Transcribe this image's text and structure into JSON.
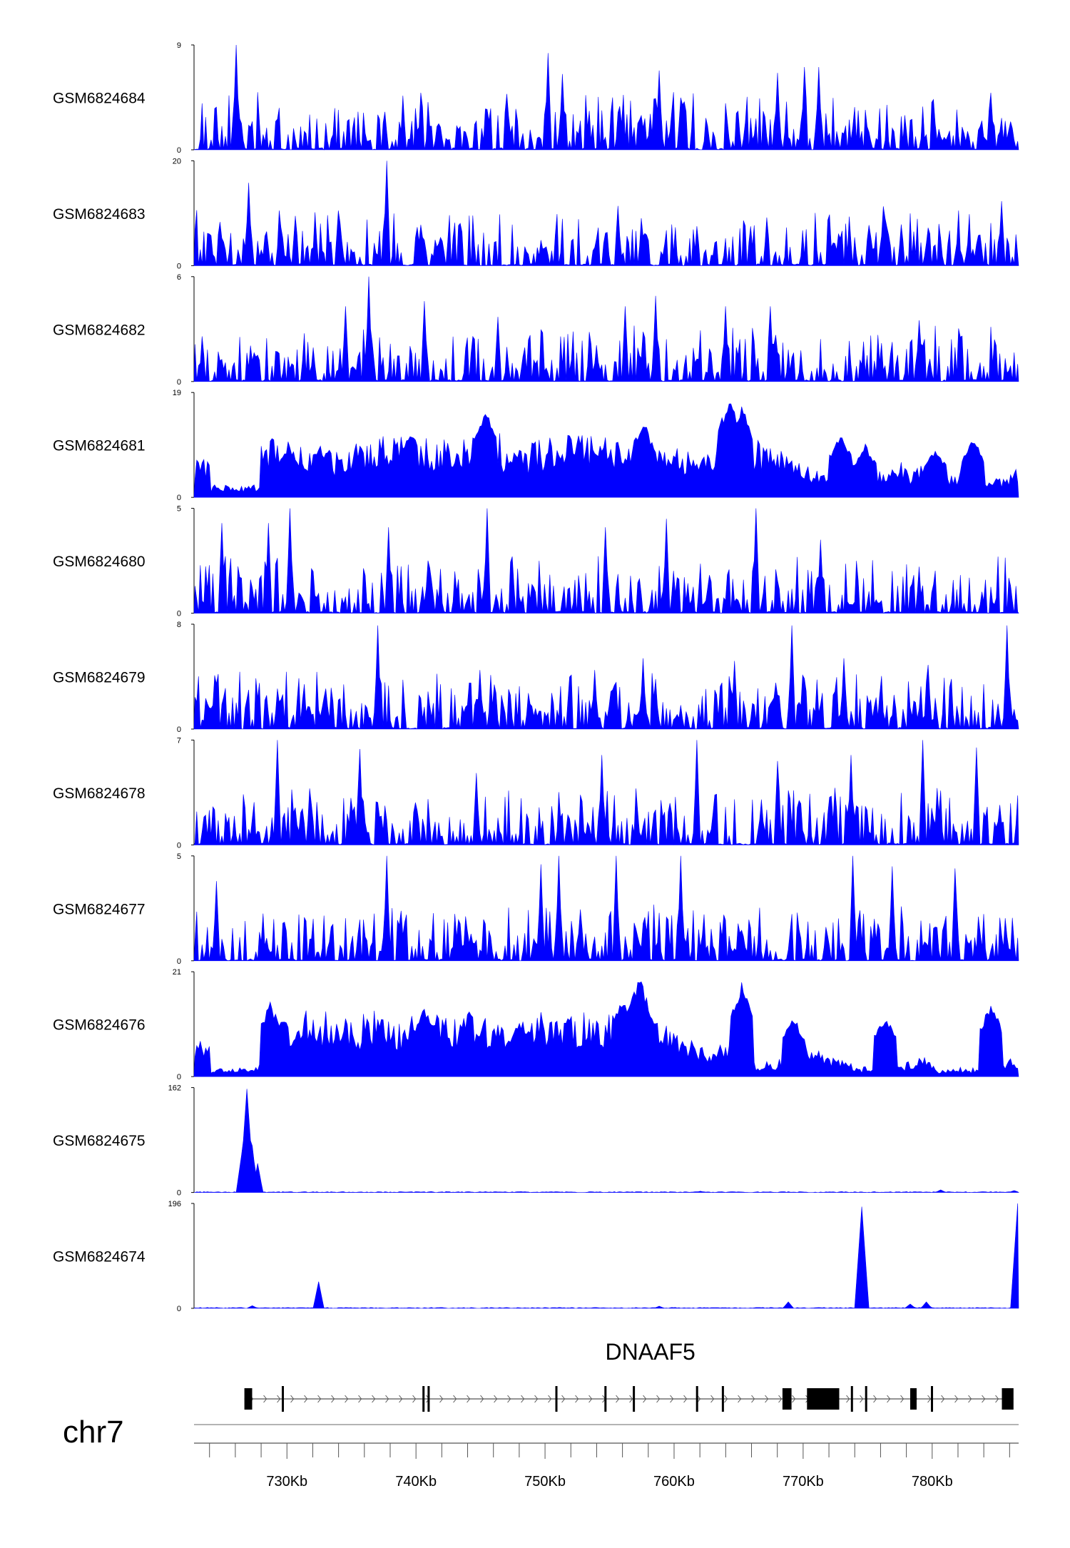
{
  "chart_data": {
    "type": "area",
    "chromosome": "chr7",
    "x_unit": "bp",
    "xlim": [
      722800,
      786700
    ],
    "x_ticks": [
      {
        "value": 730000,
        "label": "730Kb"
      },
      {
        "value": 740000,
        "label": "740Kb"
      },
      {
        "value": 750000,
        "label": "750Kb"
      },
      {
        "value": 760000,
        "label": "760Kb"
      },
      {
        "value": 770000,
        "label": "770Kb"
      },
      {
        "value": 780000,
        "label": "780Kb"
      }
    ],
    "minor_tick_step": 2000,
    "fill_color": "#0000ff",
    "tracks": [
      {
        "name": "GSM6824684",
        "ymax": 9,
        "ymax_label": "9",
        "ymin_label": "0",
        "peaks": [
          [
            726000,
            9
          ],
          [
            750300,
            8.3
          ],
          [
            758900,
            6.8
          ],
          [
            768000,
            6.6
          ],
          [
            770100,
            7.1
          ],
          [
            771200,
            7.1
          ],
          [
            751400,
            6.5
          ],
          [
            747000,
            4.8
          ],
          [
            784500,
            4.9
          ]
        ]
      },
      {
        "name": "GSM6824683",
        "ymax": 20,
        "ymax_label": "20",
        "ymin_label": "0",
        "peaks": [
          [
            727000,
            15.8
          ],
          [
            737800,
            20
          ],
          [
            734000,
            10.5
          ],
          [
            755600,
            11.4
          ],
          [
            776200,
            11.3
          ],
          [
            785400,
            12.3
          ],
          [
            766000,
            7.5
          ],
          [
            730600,
            9.5
          ]
        ]
      },
      {
        "name": "GSM6824682",
        "ymax": 6,
        "ymax_label": "6",
        "ymin_label": "0",
        "peaks": [
          [
            736300,
            6
          ],
          [
            734500,
            4.3
          ],
          [
            740600,
            4.6
          ],
          [
            758600,
            4.9
          ],
          [
            756200,
            4.3
          ],
          [
            767500,
            4.3
          ],
          [
            764000,
            4.3
          ],
          [
            746400,
            3.7
          ],
          [
            779000,
            3.5
          ]
        ]
      },
      {
        "name": "GSM6824681",
        "ymax": 19,
        "ymax_label": "19",
        "ymin_label": "0",
        "peaks": [
          [
            745400,
            17.2
          ],
          [
            764300,
            18.9
          ],
          [
            765300,
            17.4
          ],
          [
            757600,
            14.5
          ],
          [
            772900,
            12.1
          ],
          [
            783200,
            11.1
          ],
          [
            730100,
            9.1
          ],
          [
            774800,
            9.8
          ],
          [
            780300,
            9.2
          ]
        ]
      },
      {
        "name": "GSM6824680",
        "ymax": 5,
        "ymax_label": "5",
        "ymin_label": "0",
        "peaks": [
          [
            730200,
            5
          ],
          [
            745500,
            5
          ],
          [
            766400,
            5
          ],
          [
            737900,
            4.1
          ],
          [
            728500,
            4.3
          ],
          [
            759400,
            4.5
          ],
          [
            724900,
            4.3
          ],
          [
            754700,
            4.1
          ],
          [
            771400,
            3.5
          ]
        ]
      },
      {
        "name": "GSM6824679",
        "ymax": 8,
        "ymax_label": "8",
        "ymin_label": "0",
        "peaks": [
          [
            737000,
            7.9
          ],
          [
            769100,
            7.9
          ],
          [
            785800,
            7.9
          ],
          [
            773200,
            5.4
          ],
          [
            757600,
            5.4
          ],
          [
            764700,
            5.2
          ],
          [
            753800,
            4.5
          ],
          [
            779700,
            4.9
          ],
          [
            745000,
            4.5
          ]
        ]
      },
      {
        "name": "GSM6824678",
        "ymax": 7,
        "ymax_label": "7",
        "ymin_label": "0",
        "peaks": [
          [
            729300,
            7
          ],
          [
            735600,
            6.4
          ],
          [
            779200,
            7
          ],
          [
            761700,
            7
          ],
          [
            754400,
            6
          ],
          [
            768000,
            5.6
          ],
          [
            773700,
            6
          ],
          [
            783400,
            6.5
          ],
          [
            744700,
            4.8
          ]
        ]
      },
      {
        "name": "GSM6824677",
        "ymax": 5,
        "ymax_label": "5",
        "ymin_label": "0",
        "peaks": [
          [
            737700,
            5
          ],
          [
            773800,
            5
          ],
          [
            749700,
            4.6
          ],
          [
            751000,
            5
          ],
          [
            755500,
            5
          ],
          [
            760500,
            5
          ],
          [
            776900,
            4.5
          ],
          [
            781800,
            4.4
          ],
          [
            724500,
            3.8
          ]
        ]
      },
      {
        "name": "GSM6824676",
        "ymax": 21,
        "ymax_label": "21",
        "ymin_label": "0",
        "peaks": [
          [
            757300,
            21
          ],
          [
            765300,
            19
          ],
          [
            756100,
            16.1
          ],
          [
            740600,
            14.4
          ],
          [
            728700,
            15.3
          ],
          [
            784500,
            15.3
          ],
          [
            769300,
            12.3
          ],
          [
            776300,
            12.6
          ],
          [
            748000,
            11.3
          ]
        ]
      },
      {
        "name": "GSM6824675",
        "ymax": 162,
        "ymax_label": "162",
        "ymin_label": "0",
        "peaks": [
          [
            726900,
            160
          ],
          [
            727300,
            72
          ],
          [
            726500,
            58
          ],
          [
            727800,
            45
          ],
          [
            780700,
            4
          ],
          [
            786400,
            3
          ],
          [
            762000,
            2
          ]
        ]
      },
      {
        "name": "GSM6824674",
        "ymax": 196,
        "ymax_label": "196",
        "ymin_label": "0",
        "peaks": [
          [
            774500,
            190
          ],
          [
            786600,
            196
          ],
          [
            732500,
            50
          ],
          [
            768900,
            12
          ],
          [
            779600,
            12
          ],
          [
            778300,
            8
          ],
          [
            727300,
            5
          ],
          [
            758800,
            4
          ]
        ]
      }
    ],
    "gene": {
      "name": "DNAAF5",
      "start": 726700,
      "end": 786300,
      "strand": "+",
      "exons": [
        [
          726700,
          727300
        ],
        [
          729600,
          729750
        ],
        [
          740500,
          740650
        ],
        [
          740900,
          741050
        ],
        [
          750800,
          750900
        ],
        [
          754600,
          754750
        ],
        [
          756800,
          756950
        ],
        [
          761700,
          761850
        ],
        [
          763700,
          763850
        ],
        [
          768400,
          769100
        ],
        [
          770300,
          772800
        ],
        [
          773700,
          773850
        ],
        [
          774800,
          774950
        ],
        [
          778300,
          778800
        ],
        [
          779900,
          780050
        ],
        [
          785400,
          786300
        ]
      ]
    }
  }
}
